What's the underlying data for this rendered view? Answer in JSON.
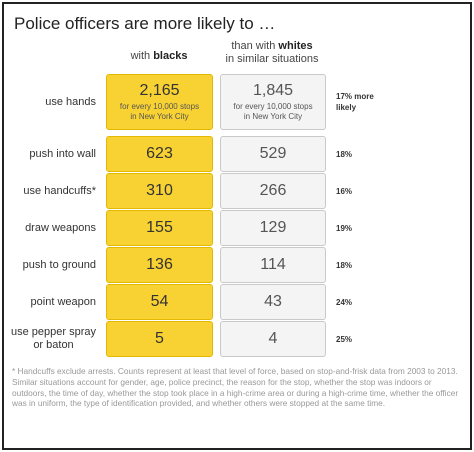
{
  "title": "Police officers are more likely to …",
  "headers": {
    "col1_prefix": "with ",
    "col1_bold": "blacks",
    "col2_prefix": "than with ",
    "col2_bold": "whites",
    "col2_line2": "in similar situations"
  },
  "subnote_line1": "for every 10,000 stops",
  "subnote_line2": "in New York City",
  "chart_data": {
    "type": "table",
    "title": "Police officers are more likely to …",
    "columns": [
      "with blacks",
      "than with whites in similar situations",
      ""
    ],
    "rows": [
      {
        "action": "use hands",
        "blacks": "2,165",
        "whites": "1,845",
        "diff": "17% more likely",
        "has_sub": true
      },
      {
        "action": "push into wall",
        "blacks": "623",
        "whites": "529",
        "diff": "18%",
        "has_sub": false
      },
      {
        "action": "use handcuffs*",
        "blacks": "310",
        "whites": "266",
        "diff": "16%",
        "has_sub": false
      },
      {
        "action": "draw weapons",
        "blacks": "155",
        "whites": "129",
        "diff": "19%",
        "has_sub": false
      },
      {
        "action": "push to ground",
        "blacks": "136",
        "whites": "114",
        "diff": "18%",
        "has_sub": false
      },
      {
        "action": "point weapon",
        "blacks": "54",
        "whites": "43",
        "diff": "24%",
        "has_sub": false
      },
      {
        "action": "use pepper spray or baton",
        "blacks": "5",
        "whites": "4",
        "diff": "25%",
        "has_sub": false
      }
    ]
  },
  "footnote": "* Handcuffs exclude arrests. Counts represent at least that level of force, based on stop-and-frisk data from 2003 to 2013. Similar situations account for gender, age, police precinct, the reason for the stop, whether the stop was indoors or outdoors, the time of day, whether the stop took place in a high-crime area or during a high-crime time, whether the officer was in uniform, the type of identification provided, and whether others were stopped at the same time.",
  "colors": {
    "blacks_fill": "#f8d232",
    "whites_fill": "#f4f4f4"
  }
}
